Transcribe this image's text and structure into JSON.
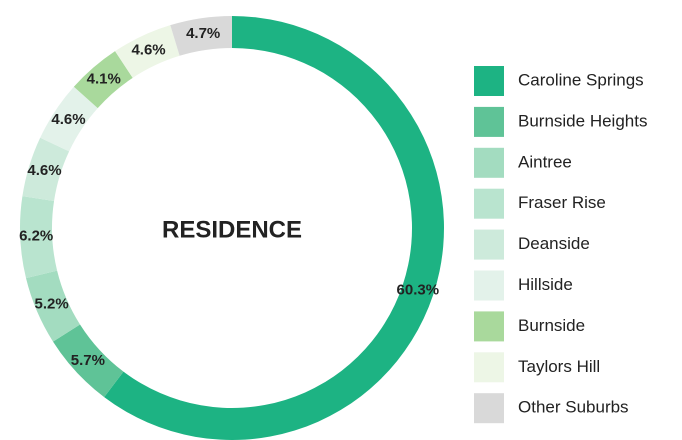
{
  "chart_data": {
    "type": "donut",
    "title": "RESIDENCE",
    "categories": [
      "Caroline Springs",
      "Burnside Heights",
      "Aintree",
      "Fraser Rise",
      "Deanside",
      "Hillside",
      "Burnside",
      "Taylors Hill",
      "Other Suburbs"
    ],
    "values": [
      60.3,
      5.7,
      5.2,
      6.2,
      4.6,
      4.6,
      4.1,
      4.6,
      4.7
    ],
    "value_labels": [
      "60.3%",
      "5.7%",
      "5.2%",
      "6.2%",
      "4.6%",
      "4.6%",
      "4.1%",
      "4.6%",
      "4.7%"
    ],
    "colors": [
      "#1db383",
      "#5fc397",
      "#a3dcc0",
      "#b9e4cf",
      "#cdeadb",
      "#e3f2ea",
      "#a9d99c",
      "#edf6e6",
      "#d9d9d9"
    ],
    "legend": "right"
  }
}
